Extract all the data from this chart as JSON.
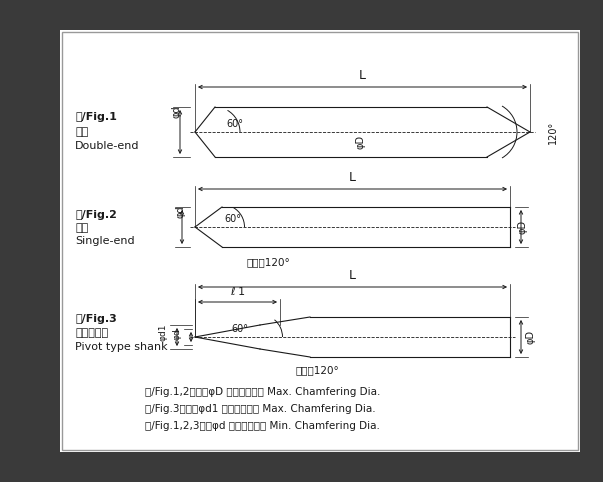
{
  "bg_color": "#ffffff",
  "border_color": "#1a1a1a",
  "line_color": "#1a1a1a",
  "fig_width": 6.03,
  "fig_height": 4.82,
  "fig_dpi": 100,
  "labels": {
    "fig1_title": "図/Fig.1",
    "fig1_sub1": "両刃",
    "fig1_sub2": "Double-end",
    "fig2_title": "図/Fig.2",
    "fig2_sub1": "片刃",
    "fig2_sub2": "Single-end",
    "fig3_title": "図/Fig.3",
    "fig3_sub1": "ルーマ形状",
    "fig3_sub2": "Pivot type shank",
    "angle60": "60°",
    "angle120": "120°",
    "L": "L",
    "phi_D": "φD",
    "phi_d": "φd",
    "phi_d1": "φd1",
    "ell1": "ℓ 1",
    "tip_angle": "先端角120°",
    "note1": "図/Fig.1,2　：　φD 最大面取り径 Max. Chamfering Dia.",
    "note2": "図/Fig.3　　：φd1 最大面取り径 Max. Chamfering Dia.",
    "note3": "図/Fig.1,2,3：　φd 最小面取り径 Min. Chamfering Dia."
  }
}
